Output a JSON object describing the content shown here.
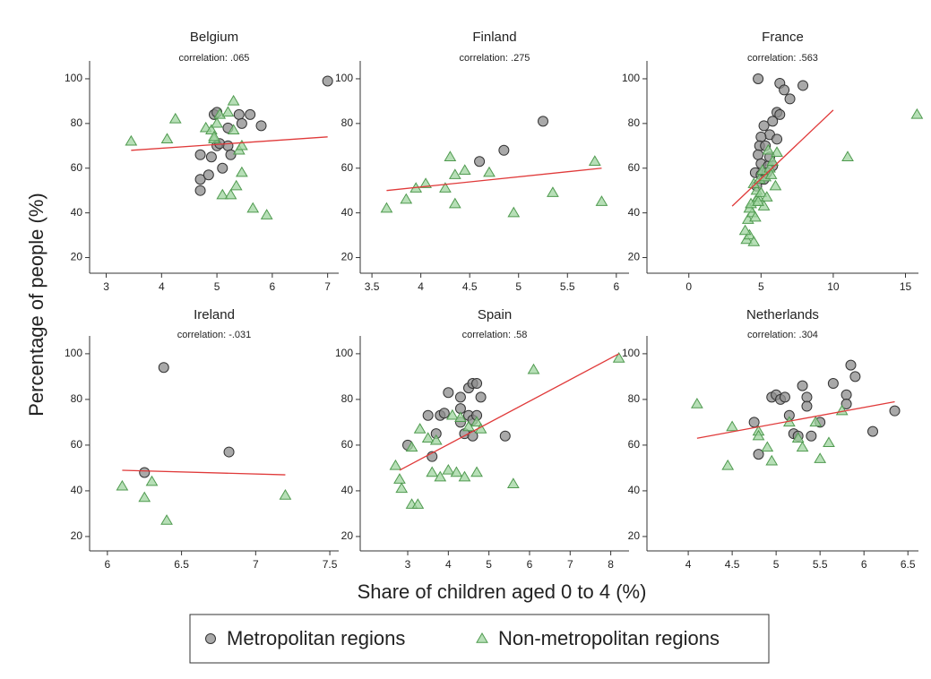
{
  "ylabel": "Percentage of people (%)",
  "xlabel": "Share of children aged 0 to 4 (%)",
  "chart_data": [
    {
      "type": "scatter",
      "title": "Belgium",
      "subtitle": "correlation: .065",
      "xlim": [
        2.7,
        7.2
      ],
      "xticks": [
        3,
        4,
        5,
        6,
        7
      ],
      "ylim": [
        13,
        108
      ],
      "yticks": [
        20,
        40,
        60,
        80,
        100
      ],
      "series": [
        {
          "name": "Metropolitan regions",
          "color": "#8c8c8c",
          "marker": "circle",
          "x": [
            4.7,
            4.7,
            4.7,
            4.85,
            4.95,
            5.0,
            5.0,
            5.05,
            5.1,
            5.2,
            5.2,
            5.25,
            5.4,
            5.45,
            5.6,
            5.8,
            4.9,
            7.0
          ],
          "values": [
            55,
            50,
            66,
            57,
            84,
            85,
            70,
            71,
            60,
            78,
            70,
            66,
            84,
            80,
            84,
            79,
            65,
            99
          ]
        },
        {
          "name": "Non-metropolitan regions",
          "color": "#9fd49f",
          "marker": "triangle",
          "x": [
            3.45,
            4.1,
            4.25,
            4.8,
            4.9,
            4.95,
            5.0,
            5.05,
            5.1,
            5.2,
            5.25,
            5.3,
            5.3,
            5.35,
            5.4,
            5.45,
            5.45,
            5.65,
            5.9,
            4.95
          ],
          "values": [
            72,
            73,
            82,
            78,
            77,
            73,
            80,
            84,
            48,
            85,
            48,
            77,
            90,
            52,
            68,
            58,
            70,
            42,
            39,
            74
          ]
        }
      ],
      "fit": {
        "color": "#e03a3a",
        "x": [
          3.45,
          7.0
        ],
        "values": [
          68,
          74
        ]
      }
    },
    {
      "type": "scatter",
      "title": "Finland",
      "subtitle": "correlation: .275",
      "xlim": [
        3.38,
        6.13
      ],
      "xticks": [
        3.5,
        4,
        4.5,
        5,
        5.5,
        6
      ],
      "ylim": [
        13,
        108
      ],
      "yticks": [
        20,
        40,
        60,
        80,
        100
      ],
      "series": [
        {
          "name": "Metropolitan regions",
          "color": "#8c8c8c",
          "marker": "circle",
          "x": [
            4.6,
            4.85,
            5.25
          ],
          "values": [
            63,
            68,
            81
          ]
        },
        {
          "name": "Non-metropolitan regions",
          "color": "#9fd49f",
          "marker": "triangle",
          "x": [
            3.65,
            3.85,
            3.95,
            4.05,
            4.25,
            4.3,
            4.35,
            4.35,
            4.45,
            4.7,
            4.95,
            5.35,
            5.78,
            5.85
          ],
          "values": [
            42,
            46,
            51,
            53,
            51,
            65,
            57,
            44,
            59,
            58,
            40,
            49,
            63,
            45
          ]
        }
      ],
      "fit": {
        "color": "#e03a3a",
        "x": [
          3.65,
          5.85
        ],
        "values": [
          50,
          60
        ]
      }
    },
    {
      "type": "scatter",
      "title": "France",
      "subtitle": "correlation: .563",
      "xlim": [
        -2.9,
        15.9
      ],
      "xticks": [
        0,
        5,
        10,
        15
      ],
      "ylim": [
        13,
        108
      ],
      "yticks": [
        20,
        40,
        60,
        80,
        100
      ],
      "series": [
        {
          "name": "Metropolitan regions",
          "color": "#8c8c8c",
          "marker": "circle",
          "x": [
            4.8,
            6.3,
            6.6,
            7.0,
            7.9,
            6.1,
            5.8,
            6.3,
            5.2,
            5.6,
            5.0,
            4.9,
            5.3,
            4.8,
            5.0,
            5.5,
            5.8,
            4.6,
            5.0,
            5.2,
            6.1,
            5.4,
            5.6,
            4.7
          ],
          "values": [
            100,
            98,
            95,
            91,
            97,
            85,
            81,
            84,
            79,
            75,
            74,
            70,
            70,
            66,
            62,
            61,
            61,
            58,
            57,
            55,
            73,
            58,
            65,
            52
          ]
        },
        {
          "name": "Non-metropolitan regions",
          "color": "#9fd49f",
          "marker": "triangle",
          "x": [
            15.8,
            11.0,
            4.0,
            4.2,
            3.9,
            4.5,
            4.1,
            4.4,
            4.2,
            4.6,
            4.8,
            4.7,
            5.0,
            4.5,
            4.9,
            5.3,
            5.1,
            5.6,
            5.8,
            6.1,
            5.4,
            4.3,
            4.6,
            5.2,
            5.7,
            6.0,
            4.8,
            5.5
          ],
          "values": [
            84,
            65,
            28,
            30,
            32,
            27,
            37,
            40,
            42,
            45,
            47,
            50,
            49,
            53,
            55,
            56,
            59,
            60,
            63,
            67,
            47,
            44,
            38,
            43,
            57,
            52,
            45,
            68
          ]
        }
      ],
      "fit": {
        "color": "#e03a3a",
        "x": [
          3,
          10
        ],
        "values": [
          43,
          86
        ]
      }
    },
    {
      "type": "scatter",
      "title": "Ireland",
      "subtitle": "correlation: -.031",
      "xlim": [
        5.88,
        7.56
      ],
      "xticks": [
        6,
        6.5,
        7,
        7.5
      ],
      "ylim": [
        13.7,
        107.8
      ],
      "yticks": [
        20,
        40,
        60,
        80,
        100
      ],
      "series": [
        {
          "name": "Metropolitan regions",
          "color": "#8c8c8c",
          "marker": "circle",
          "x": [
            6.25,
            6.38,
            6.82
          ],
          "values": [
            48,
            94,
            57
          ]
        },
        {
          "name": "Non-metropolitan regions",
          "color": "#9fd49f",
          "marker": "triangle",
          "x": [
            6.1,
            6.25,
            6.3,
            6.4,
            7.2
          ],
          "values": [
            42,
            37,
            44,
            27,
            38
          ]
        }
      ],
      "fit": {
        "color": "#e03a3a",
        "x": [
          6.1,
          7.2
        ],
        "values": [
          49,
          47
        ]
      }
    },
    {
      "type": "scatter",
      "title": "Spain",
      "subtitle": "correlation: .58",
      "xlim": [
        1.83,
        8.45
      ],
      "xticks": [
        3,
        4,
        5,
        6,
        7,
        8
      ],
      "ylim": [
        13.7,
        107.8
      ],
      "yticks": [
        20,
        40,
        60,
        80,
        100
      ],
      "series": [
        {
          "name": "Metropolitan regions",
          "color": "#8c8c8c",
          "marker": "circle",
          "x": [
            3.0,
            3.5,
            3.7,
            3.8,
            3.9,
            3.6,
            4.0,
            4.3,
            4.3,
            4.5,
            4.6,
            4.7,
            4.8,
            4.5,
            4.6,
            4.7,
            4.4,
            4.6,
            5.4,
            4.3
          ],
          "values": [
            60,
            73,
            65,
            73,
            74,
            55,
            83,
            81,
            76,
            85,
            87,
            87,
            81,
            73,
            71,
            73,
            65,
            64,
            64,
            70
          ]
        },
        {
          "name": "Non-metropolitan regions",
          "color": "#9fd49f",
          "marker": "triangle",
          "x": [
            2.7,
            2.8,
            2.85,
            3.1,
            3.25,
            3.1,
            3.3,
            3.5,
            3.6,
            3.8,
            4.0,
            4.2,
            4.4,
            4.1,
            4.3,
            4.5,
            4.7,
            4.8,
            4.7,
            5.6,
            6.1,
            8.2,
            3.7
          ],
          "values": [
            51,
            45,
            41,
            34,
            34,
            59,
            67,
            63,
            48,
            46,
            49,
            48,
            46,
            73,
            72,
            68,
            70,
            67,
            48,
            43,
            93,
            98,
            62
          ]
        }
      ],
      "fit": {
        "color": "#e03a3a",
        "x": [
          2.8,
          8.2
        ],
        "values": [
          49,
          100
        ]
      }
    },
    {
      "type": "scatter",
      "title": "Netherlands",
      "subtitle": "correlation: .304",
      "xlim": [
        3.53,
        6.62
      ],
      "xticks": [
        4,
        4.5,
        5,
        5.5,
        6,
        6.5
      ],
      "ylim": [
        13.7,
        107.8
      ],
      "yticks": [
        20,
        40,
        60,
        80,
        100
      ],
      "series": [
        {
          "name": "Metropolitan regions",
          "color": "#8c8c8c",
          "marker": "circle",
          "x": [
            4.75,
            4.8,
            4.95,
            5.0,
            5.05,
            5.1,
            5.15,
            5.2,
            5.3,
            5.35,
            5.35,
            5.4,
            5.5,
            5.65,
            5.8,
            5.8,
            5.85,
            5.9,
            6.1,
            6.35,
            5.25
          ],
          "values": [
            70,
            56,
            81,
            82,
            80,
            81,
            73,
            65,
            86,
            81,
            77,
            64,
            70,
            87,
            82,
            78,
            95,
            90,
            66,
            75,
            64
          ]
        },
        {
          "name": "Non-metropolitan regions",
          "color": "#9fd49f",
          "marker": "triangle",
          "x": [
            4.1,
            4.45,
            4.5,
            4.8,
            4.9,
            4.95,
            5.15,
            5.25,
            5.3,
            5.45,
            5.5,
            5.6,
            5.75,
            4.8
          ],
          "values": [
            78,
            51,
            68,
            66,
            59,
            53,
            70,
            63,
            59,
            70,
            54,
            61,
            75,
            64
          ]
        }
      ],
      "fit": {
        "color": "#e03a3a",
        "x": [
          4.1,
          6.35
        ],
        "values": [
          63,
          79
        ]
      }
    }
  ]
}
